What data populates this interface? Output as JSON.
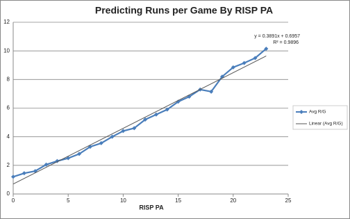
{
  "chart_data": {
    "type": "line",
    "title": "Predicting Runs per Game By RISP PA",
    "x_label": "RISP PA",
    "x": [
      0,
      1,
      2,
      3,
      4,
      5,
      6,
      7,
      8,
      9,
      10,
      11,
      12,
      13,
      14,
      15,
      16,
      17,
      18,
      19,
      20,
      21,
      22,
      23
    ],
    "series": [
      {
        "name": "Avg R/G",
        "color": "#4a7ebb",
        "marker": "diamond",
        "values": [
          1.2,
          1.45,
          1.6,
          2.05,
          2.3,
          2.5,
          2.8,
          3.3,
          3.55,
          4.0,
          4.4,
          4.6,
          5.2,
          5.55,
          5.9,
          6.45,
          6.8,
          7.3,
          7.15,
          8.2,
          8.85,
          9.15,
          9.5,
          10.15
        ]
      },
      {
        "name": "Linear (Avg R/G)",
        "color": "#555555",
        "x": [
          0,
          23
        ],
        "values": [
          0.6957,
          9.645
        ]
      }
    ],
    "annotations": [
      "y = 0.3891x + 0.6957",
      "R² = 0.9896"
    ],
    "xlim": [
      0,
      25
    ],
    "xticks": [
      0,
      5,
      10,
      15,
      20,
      25
    ],
    "ylim": [
      0,
      12
    ],
    "yticks": [
      0,
      2,
      4,
      6,
      8,
      10,
      12
    ],
    "grid": true,
    "legend": "right"
  }
}
